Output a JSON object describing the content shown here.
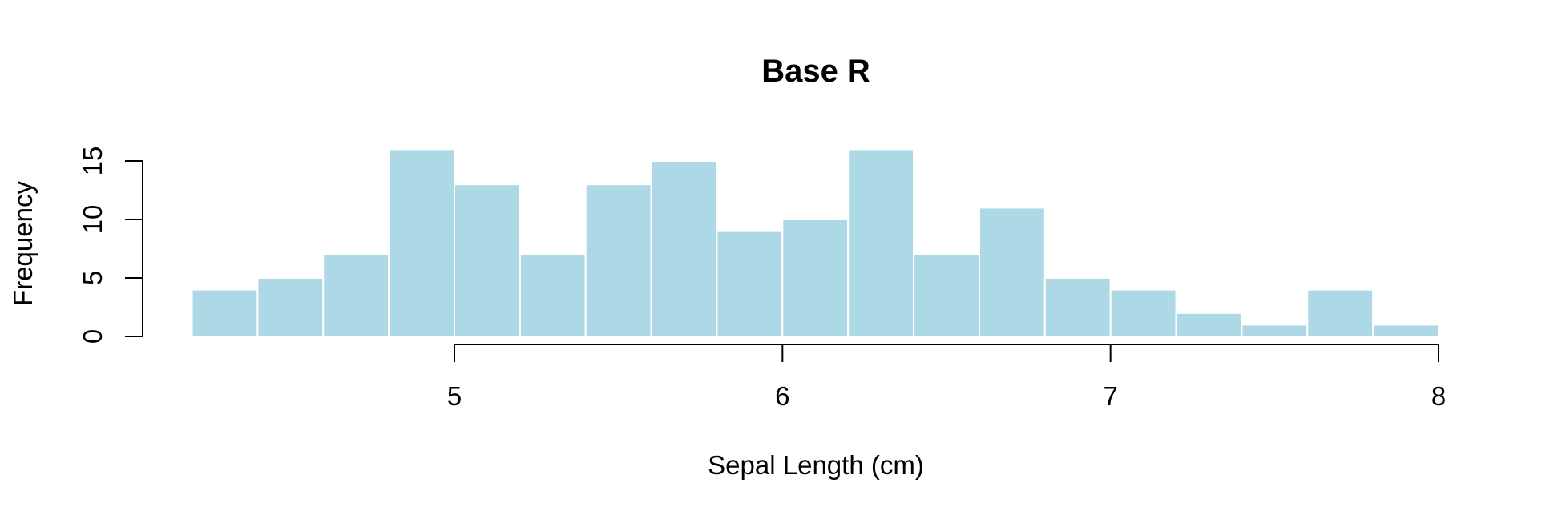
{
  "chart_data": {
    "type": "bar",
    "title": "Base R",
    "xlabel": "Sepal Length (cm)",
    "ylabel": "Frequency",
    "bin_edges": [
      4.2,
      4.4,
      4.6,
      4.8,
      5.0,
      5.2,
      5.4,
      5.6,
      5.8,
      6.0,
      6.2,
      6.4,
      6.6,
      6.8,
      7.0,
      7.2,
      7.4,
      7.6,
      7.8,
      8.0
    ],
    "values": [
      4,
      5,
      7,
      16,
      13,
      7,
      13,
      15,
      9,
      10,
      16,
      7,
      11,
      5,
      4,
      2,
      1,
      4,
      1
    ],
    "xticks": [
      5,
      6,
      7,
      8
    ],
    "yticks": [
      0,
      5,
      10,
      15
    ],
    "xlim": [
      4.2,
      8.0
    ],
    "ylim": [
      0,
      16
    ],
    "bar_color": "#add8e6",
    "grid": false
  }
}
